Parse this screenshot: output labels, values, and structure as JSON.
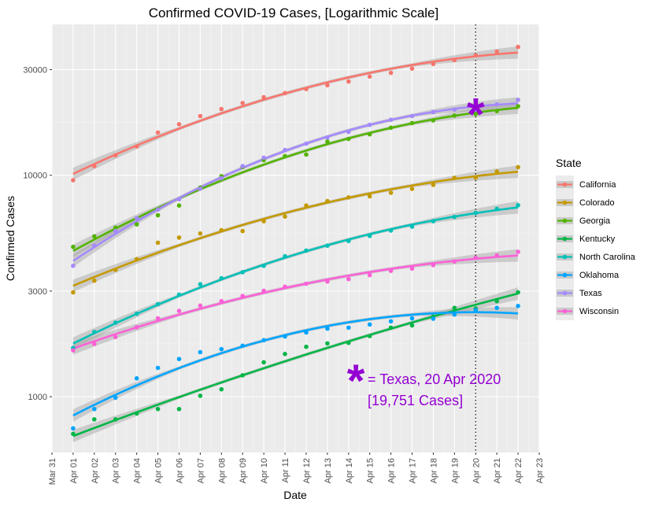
{
  "chart_data": {
    "type": "scatter",
    "title": "Confirmed COVID-19 Cases, [Logarithmic Scale]",
    "xlabel": "Date",
    "ylabel": "Confirmed Cases",
    "y_scale": "log10",
    "grid": true,
    "legend_title": "State",
    "legend_position": "right",
    "x_ticks": [
      "Mar 31",
      "Apr 01",
      "Apr 02",
      "Apr 03",
      "Apr 04",
      "Apr 05",
      "Apr 06",
      "Apr 07",
      "Apr 08",
      "Apr 09",
      "Apr 10",
      "Apr 11",
      "Apr 12",
      "Apr 13",
      "Apr 14",
      "Apr 15",
      "Apr 16",
      "Apr 17",
      "Apr 18",
      "Apr 19",
      "Apr 20",
      "Apr 21",
      "Apr 22",
      "Apr 23"
    ],
    "x_range": [
      "2020-03-31",
      "2020-04-23"
    ],
    "y_ticks": [
      1000,
      3000,
      10000,
      30000
    ],
    "y_tick_labels": [
      "1000",
      "3000",
      "10000",
      "30000"
    ],
    "y_range": [
      560,
      48000
    ],
    "x": [
      "2020-04-01",
      "2020-04-02",
      "2020-04-03",
      "2020-04-04",
      "2020-04-05",
      "2020-04-06",
      "2020-04-07",
      "2020-04-08",
      "2020-04-09",
      "2020-04-10",
      "2020-04-11",
      "2020-04-12",
      "2020-04-13",
      "2020-04-14",
      "2020-04-15",
      "2020-04-16",
      "2020-04-17",
      "2020-04-18",
      "2020-04-19",
      "2020-04-20",
      "2020-04-21",
      "2020-04-22"
    ],
    "series": [
      {
        "name": "California",
        "color": "#F8766D",
        "values": [
          9500,
          11000,
          12300,
          13500,
          15600,
          17000,
          18500,
          19900,
          21200,
          22500,
          23500,
          24500,
          25500,
          26500,
          27900,
          29000,
          30300,
          31800,
          33100,
          34800,
          36200,
          38000
        ]
      },
      {
        "name": "Colorado",
        "color": "#C49A00",
        "values": [
          2960,
          3340,
          3740,
          4180,
          4960,
          5230,
          5460,
          5650,
          5600,
          6200,
          6510,
          7300,
          7650,
          7950,
          8030,
          8330,
          8680,
          9050,
          9730,
          9750,
          10400,
          10880
        ]
      },
      {
        "name": "Georgia",
        "color": "#53B400",
        "values": [
          4750,
          5300,
          5800,
          6000,
          6600,
          7300,
          8800,
          9900,
          10900,
          11700,
          12200,
          12400,
          14200,
          14600,
          15300,
          16400,
          17200,
          17700,
          18600,
          18900,
          19500,
          20500
        ]
      },
      {
        "name": "Kentucky",
        "color": "#00B646",
        "values": [
          680,
          790,
          790,
          840,
          880,
          880,
          1010,
          1080,
          1250,
          1430,
          1560,
          1680,
          1740,
          1750,
          1880,
          2050,
          2100,
          2300,
          2520,
          2500,
          2700,
          2960
        ]
      },
      {
        "name": "North Carolina",
        "color": "#00C0B8",
        "values": [
          1660,
          1960,
          2160,
          2370,
          2620,
          2890,
          3220,
          3430,
          3650,
          3900,
          4310,
          4570,
          4810,
          5050,
          5320,
          5630,
          5860,
          6200,
          6480,
          6760,
          7050,
          7320
        ]
      },
      {
        "name": "Oklahoma",
        "color": "#00A5FF",
        "values": [
          720,
          880,
          990,
          1210,
          1350,
          1480,
          1590,
          1640,
          1700,
          1800,
          1870,
          1950,
          2030,
          2050,
          2120,
          2190,
          2260,
          2250,
          2350,
          2460,
          2520,
          2570
        ]
      },
      {
        "name": "Texas",
        "color": "#A58AFF",
        "values": [
          3900,
          4800,
          5600,
          6400,
          7000,
          7800,
          8700,
          9700,
          11000,
          12000,
          13000,
          13900,
          14800,
          15700,
          16900,
          17800,
          18500,
          19300,
          19800,
          19751,
          20900,
          21900
        ]
      },
      {
        "name": "Wisconsin",
        "color": "#FB61D7",
        "values": [
          1620,
          1730,
          1860,
          2060,
          2260,
          2440,
          2580,
          2700,
          2850,
          3010,
          3140,
          3240,
          3310,
          3400,
          3540,
          3700,
          3790,
          3930,
          4080,
          4240,
          4350,
          4510
        ]
      }
    ],
    "annotation": {
      "marker": "*",
      "text_line1": "= Texas, 20 Apr 2020",
      "text_line2": "[19,751 Cases]",
      "color": "#9400D3",
      "date": "2020-04-20",
      "value": 19751
    },
    "vline_date": "2020-04-20"
  }
}
